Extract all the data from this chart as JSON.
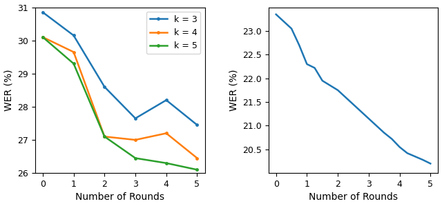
{
  "left": {
    "x": [
      0,
      1,
      2,
      3,
      4,
      5
    ],
    "k3": [
      30.85,
      30.15,
      28.6,
      27.65,
      28.2,
      27.45
    ],
    "k4": [
      30.1,
      29.65,
      27.1,
      27.0,
      27.2,
      26.45
    ],
    "k5": [
      30.1,
      29.3,
      27.1,
      26.45,
      26.3,
      26.1
    ],
    "colors": {
      "k3": "#1f77b4",
      "k4": "#ff7f0e",
      "k5": "#2ca02c"
    },
    "labels": {
      "k3": "k = 3",
      "k4": "k = 4",
      "k5": "k = 5"
    },
    "ylabel": "WER (%)",
    "xlabel": "Number of Rounds",
    "ylim": [
      26,
      31
    ],
    "yticks": [
      26,
      27,
      28,
      29,
      30,
      31
    ]
  },
  "right": {
    "x": [
      0,
      0.25,
      0.5,
      0.75,
      1.0,
      1.25,
      1.5,
      1.75,
      2.0,
      2.25,
      2.5,
      2.75,
      3.0,
      3.25,
      3.5,
      3.75,
      4.0,
      4.25,
      4.5,
      4.75,
      5.0
    ],
    "y": [
      23.35,
      23.2,
      23.05,
      22.7,
      22.3,
      22.22,
      21.95,
      21.85,
      21.75,
      21.6,
      21.45,
      21.3,
      21.15,
      21.0,
      20.85,
      20.72,
      20.55,
      20.42,
      20.35,
      20.28,
      20.2
    ],
    "color": "#1f77b4",
    "ylabel": "WER (%)",
    "xlabel": "Number of Rounds",
    "ylim": [
      20.0,
      23.5
    ],
    "yticks": [
      20.5,
      21.0,
      21.5,
      22.0,
      22.5,
      23.0
    ]
  },
  "figsize": [
    6.4,
    2.99
  ],
  "dpi": 100
}
